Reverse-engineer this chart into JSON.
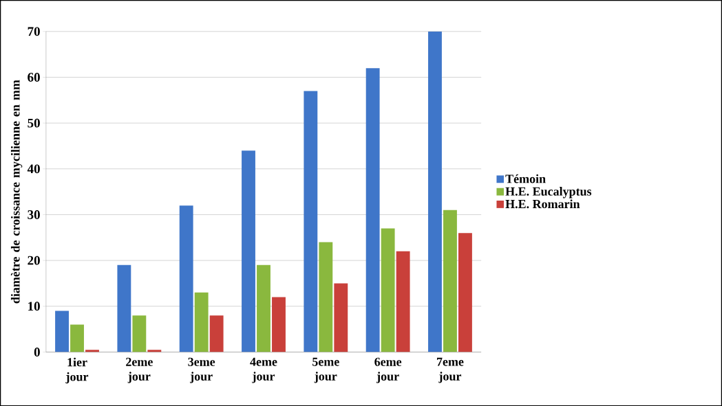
{
  "chart_data": {
    "type": "bar",
    "ylabel": "diamètre de croissance mycilienne en mm",
    "categories": [
      "1ier jour",
      "2eme jour",
      "3eme jour",
      "4eme jour",
      "5eme jour",
      "6eme jour",
      "7eme jour"
    ],
    "series": [
      {
        "name": "Témoin",
        "color": "#3f76c9",
        "values": [
          9,
          19,
          32,
          44,
          57,
          62,
          70
        ]
      },
      {
        "name": "H.E. Eucalyptus",
        "color": "#8ab83e",
        "values": [
          6,
          8,
          13,
          19,
          24,
          27,
          31
        ]
      },
      {
        "name": "H.E. Romarin",
        "color": "#c9403a",
        "values": [
          0.5,
          0.5,
          8,
          12,
          15,
          22,
          26
        ]
      }
    ],
    "ylim": [
      0,
      70
    ],
    "yticks": [
      0,
      10,
      20,
      30,
      40,
      50,
      60,
      70
    ],
    "grid": "y",
    "legend": "right"
  }
}
